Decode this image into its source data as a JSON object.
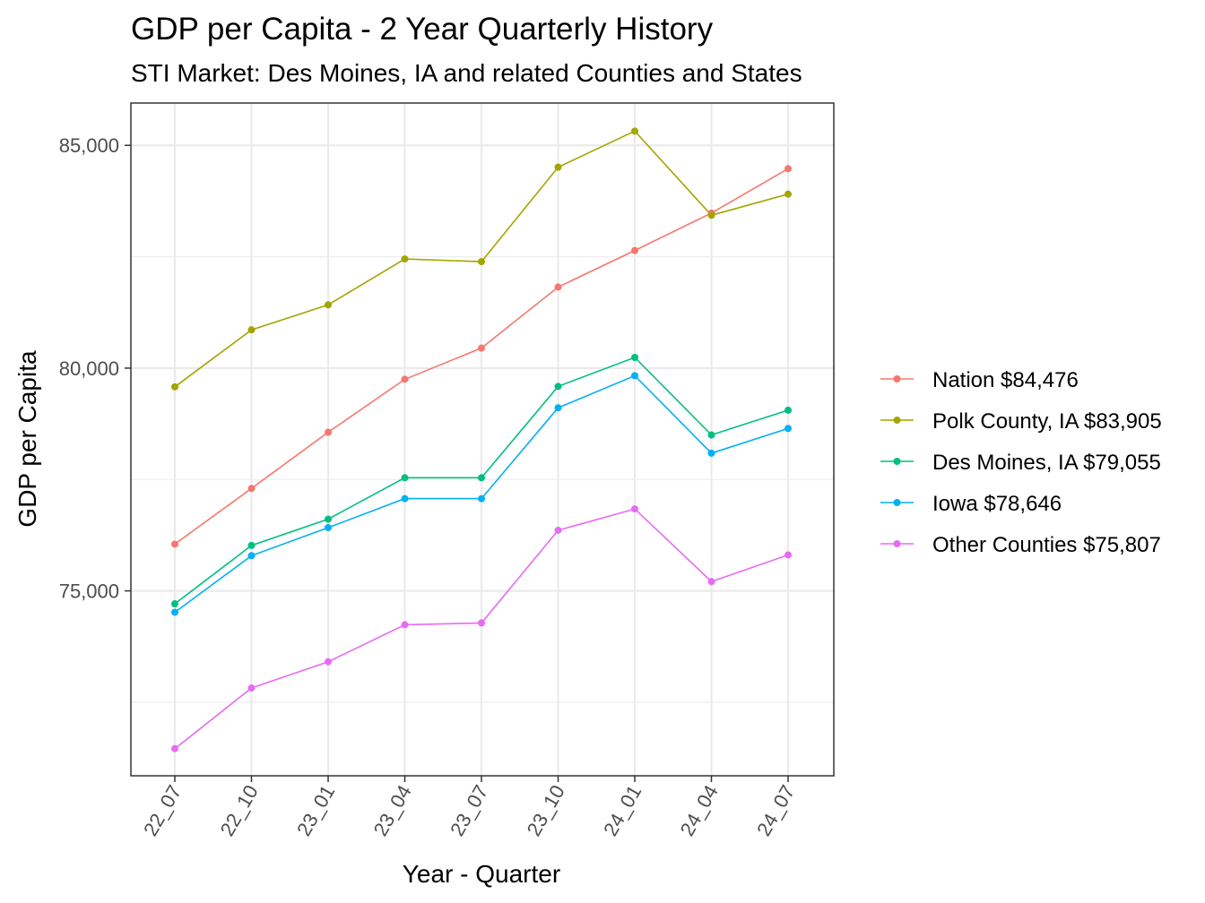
{
  "chart_data": {
    "type": "line",
    "title": "GDP per Capita - 2 Year Quarterly History",
    "subtitle": "STI Market: Des Moines, IA and related Counties and States",
    "xlabel": "Year - Quarter",
    "ylabel": "GDP per Capita",
    "categories": [
      "22_07",
      "22_10",
      "23_01",
      "23_04",
      "23_07",
      "23_10",
      "24_01",
      "24_04",
      "24_07"
    ],
    "ylim": [
      70850,
      85950
    ],
    "yticks": [
      75000,
      80000,
      85000
    ],
    "ytick_labels": [
      "75,000",
      "80,000",
      "85,000"
    ],
    "grid": true,
    "legend_position": "right",
    "series": [
      {
        "name": "Nation $84,476",
        "color": "#F8766D",
        "values": [
          76050,
          77300,
          78560,
          79750,
          80450,
          81820,
          82640,
          83480,
          84476
        ]
      },
      {
        "name": "Polk County, IA $83,905",
        "color": "#A3A500",
        "values": [
          79580,
          80860,
          81420,
          82450,
          82390,
          84510,
          85320,
          83430,
          83905
        ]
      },
      {
        "name": "Des Moines, IA $79,055",
        "color": "#00BF7D",
        "values": [
          74710,
          76020,
          76610,
          77540,
          77540,
          79590,
          80240,
          78500,
          79055
        ]
      },
      {
        "name": "Iowa $78,646",
        "color": "#00B0F6",
        "values": [
          74520,
          75790,
          76420,
          77070,
          77070,
          79110,
          79830,
          78090,
          78646
        ]
      },
      {
        "name": "Other Counties $75,807",
        "color": "#E76BF3",
        "values": [
          71460,
          72820,
          73410,
          74240,
          74280,
          76360,
          76840,
          75210,
          75807
        ]
      }
    ]
  }
}
